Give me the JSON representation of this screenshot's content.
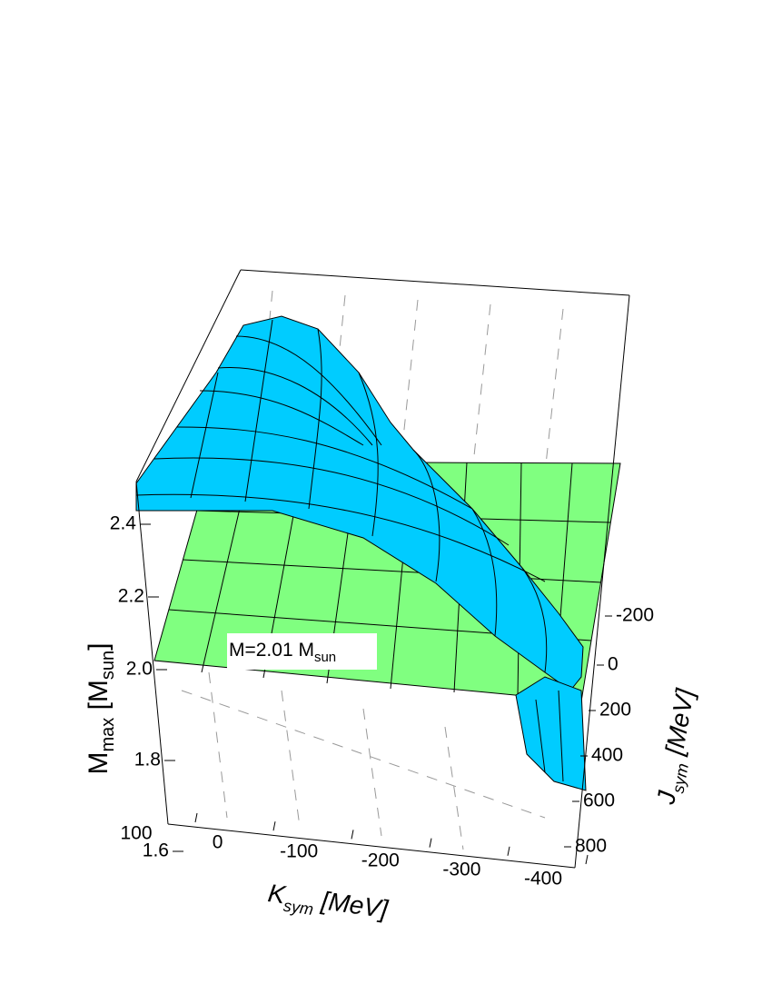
{
  "chart_data": {
    "type": "surface3d",
    "zlabel": {
      "main": "M",
      "sub": "max",
      "rest": " [M",
      "sub2": "sun",
      "end": "]"
    },
    "xlabel": {
      "main": "K",
      "sub": "sym",
      "rest": " [MeV]"
    },
    "ylabel": {
      "main": "J",
      "sub": "sym",
      "rest": " [MeV]"
    },
    "annotation": {
      "main": "M=2.01 M",
      "sub": "sun"
    },
    "plane_value": 2.01,
    "zticks": [
      1.6,
      1.8,
      {
        "value": 2,
        "label": "2.0"
      },
      2.2,
      2.4
    ],
    "xticks": [
      100,
      0,
      -100,
      -200,
      -300,
      -400
    ],
    "yticks": [
      -200,
      0,
      200,
      400,
      600,
      800
    ],
    "surface_color": "#00ccff",
    "plane_color": "#80ff80"
  }
}
